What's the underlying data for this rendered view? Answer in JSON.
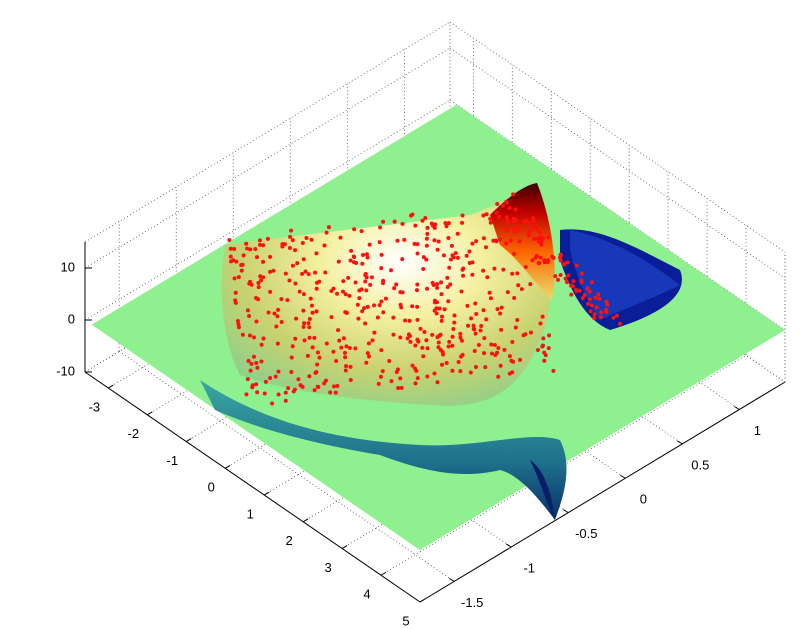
{
  "chart_data": {
    "type": "surface3d",
    "xlim": [
      -3.6,
      5
    ],
    "ylim": [
      -1.8,
      1.4
    ],
    "zlim": [
      -10,
      15
    ],
    "xticks": [
      -3,
      -2,
      -1,
      0,
      1,
      2,
      3,
      4,
      5
    ],
    "yticks": [
      -1.5,
      -1,
      -0.5,
      0,
      0.5,
      1
    ],
    "zticks": [
      -10,
      0,
      10
    ],
    "grid": true,
    "surface_color": "#8ff08f",
    "point_color": "#ff1010"
  }
}
